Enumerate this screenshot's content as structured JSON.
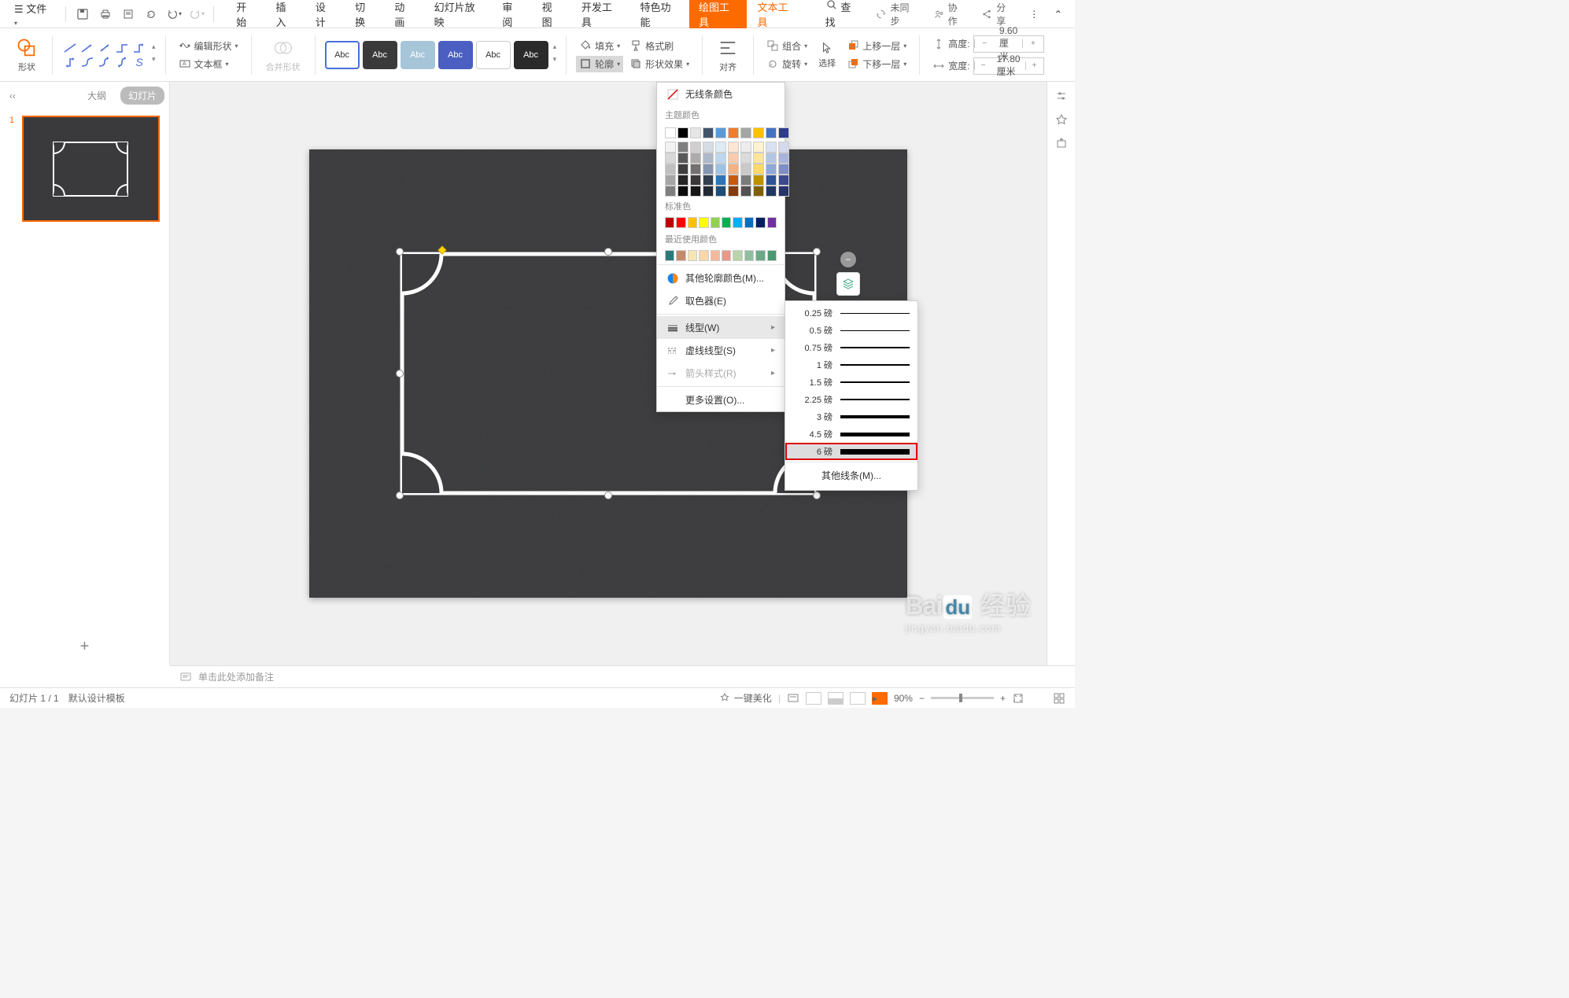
{
  "titlebar": {
    "file_menu": "文件",
    "tabs": [
      "开始",
      "插入",
      "设计",
      "切换",
      "动画",
      "幻灯片放映",
      "审阅",
      "视图",
      "开发工具",
      "特色功能",
      "绘图工具",
      "文本工具"
    ],
    "active_tab_index": 10,
    "search": "查找",
    "sync": "未同步",
    "collab": "协作",
    "share": "分享"
  },
  "ribbon": {
    "shape_label": "形状",
    "edit_shape": "编辑形状",
    "text_box": "文本框",
    "merge_shapes": "合并形状",
    "styles": [
      {
        "bg": "#ffffff",
        "fg": "#333",
        "border": "#4a6fd8",
        "label": "Abc"
      },
      {
        "bg": "#3a3a3a",
        "fg": "#fff",
        "border": "#3a3a3a",
        "label": "Abc"
      },
      {
        "bg": "#a7c5d9",
        "fg": "#fff",
        "border": "#a7c5d9",
        "label": "Abc"
      },
      {
        "bg": "#4a5fc1",
        "fg": "#fff",
        "border": "#4a5fc1",
        "label": "Abc"
      },
      {
        "bg": "#ffffff",
        "fg": "#333",
        "border": "#ccc",
        "label": "Abc"
      },
      {
        "bg": "#2a2a2a",
        "fg": "#fff",
        "border": "#2a2a2a",
        "label": "Abc"
      }
    ],
    "fill": "填充",
    "outline": "轮廓",
    "format_painter": "格式刷",
    "shape_effects": "形状效果",
    "align": "对齐",
    "group": "组合",
    "rotate": "旋转",
    "select": "选择",
    "bring_forward": "上移一层",
    "send_backward": "下移一层",
    "height_label": "高度:",
    "width_label": "宽度:",
    "height_value": "9.60厘米",
    "width_value": "17.80厘米"
  },
  "left_panel": {
    "outline_tab": "大纲",
    "slides_tab": "幻灯片",
    "slide_number": "1"
  },
  "outline_popup": {
    "no_line": "无线条颜色",
    "theme_colors_label": "主题颜色",
    "theme_colors": [
      "#ffffff",
      "#000000",
      "#e7e6e6",
      "#44546a",
      "#5b9bd5",
      "#ed7d31",
      "#a5a5a5",
      "#ffc000",
      "#4472c4",
      "#2e3b8f"
    ],
    "theme_tints": [
      [
        "#f2f2f2",
        "#7f7f7f",
        "#d0cece",
        "#d6dce4",
        "#deebf6",
        "#fbe5d5",
        "#ededed",
        "#fff2cc",
        "#d9e2f3",
        "#d4d9ed"
      ],
      [
        "#d8d8d8",
        "#595959",
        "#aeabab",
        "#adb9ca",
        "#bdd7ee",
        "#f7cbac",
        "#dbdbdb",
        "#fee599",
        "#b4c6e7",
        "#aab3db"
      ],
      [
        "#bfbfbf",
        "#3f3f3f",
        "#757070",
        "#8496b0",
        "#9cc3e5",
        "#f4b183",
        "#c9c9c9",
        "#ffd965",
        "#8eaadb",
        "#7f8dc9"
      ],
      [
        "#a5a5a5",
        "#262626",
        "#3a3838",
        "#323f4f",
        "#2e75b5",
        "#c55a11",
        "#7b7b7b",
        "#bf9000",
        "#2f5496",
        "#3b4a8f"
      ],
      [
        "#7f7f7f",
        "#0c0c0c",
        "#171616",
        "#222a35",
        "#1e4e79",
        "#833c0b",
        "#525252",
        "#7f6000",
        "#1f3864",
        "#28326b"
      ]
    ],
    "standard_label": "标准色",
    "standard_colors": [
      "#c00000",
      "#ff0000",
      "#ffc000",
      "#ffff00",
      "#92d050",
      "#00b050",
      "#00b0f0",
      "#0070c0",
      "#002060",
      "#7030a0"
    ],
    "recent_label": "最近使用颜色",
    "recent_colors": [
      "#2a7a7a",
      "#c48b6a",
      "#f5e6b3",
      "#f9d7a8",
      "#f4b89a",
      "#e89a8a",
      "#b8d4a8",
      "#8fbf9f",
      "#6ba888",
      "#4a9970"
    ],
    "more_colors": "其他轮廓颜色(M)...",
    "eyedropper": "取色器(E)",
    "line_style": "线型(W)",
    "dash_style": "虚线线型(S)",
    "arrow_style": "箭头样式(R)",
    "more_settings": "更多设置(O)..."
  },
  "line_weights": {
    "unit": "磅",
    "items": [
      {
        "label": "0.25 磅",
        "w": 0.5
      },
      {
        "label": "0.5 磅",
        "w": 1
      },
      {
        "label": "0.75 磅",
        "w": 1.2
      },
      {
        "label": "1 磅",
        "w": 1.5
      },
      {
        "label": "1.5 磅",
        "w": 2
      },
      {
        "label": "2.25 磅",
        "w": 2.8
      },
      {
        "label": "3 磅",
        "w": 3.5
      },
      {
        "label": "4.5 磅",
        "w": 5
      },
      {
        "label": "6 磅",
        "w": 7
      }
    ],
    "selected_index": 8,
    "other_lines": "其他线条(M)..."
  },
  "notes_placeholder": "单击此处添加备注",
  "statusbar": {
    "slide_pos": "幻灯片 1 / 1",
    "template": "默认设计模板",
    "beautify": "一键美化",
    "zoom": "90%"
  },
  "watermark": {
    "brand": "Baidu 经验",
    "url": "jingyan.baidu.com"
  }
}
